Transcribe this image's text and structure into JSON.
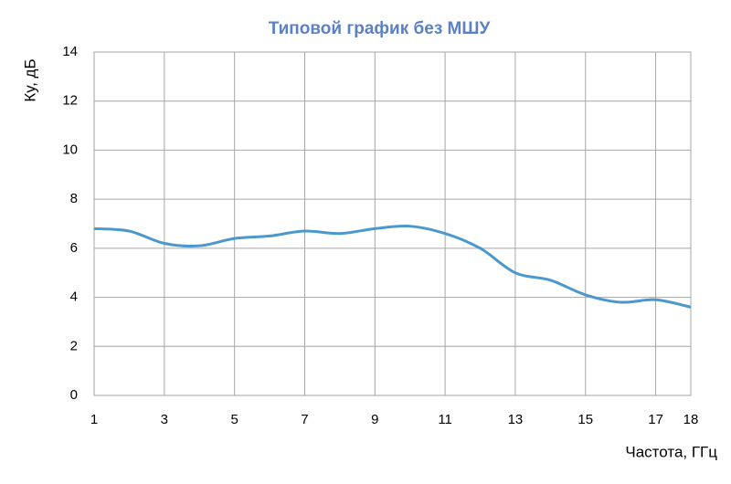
{
  "chart_data": {
    "type": "line",
    "title": "Типовой график без МШУ",
    "x_label": "Частота, ГГц",
    "y_label": "Ку, дБ",
    "x": [
      1,
      2,
      3,
      4,
      5,
      6,
      7,
      8,
      9,
      10,
      11,
      12,
      13,
      14,
      15,
      16,
      17,
      18
    ],
    "series": [
      {
        "name": "Ку",
        "color": "#4a98cd",
        "values": [
          6.8,
          6.7,
          6.2,
          6.1,
          6.4,
          6.5,
          6.7,
          6.6,
          6.8,
          6.9,
          6.6,
          6.0,
          5.0,
          4.7,
          4.1,
          3.8,
          3.9,
          3.6
        ]
      }
    ],
    "xlim": [
      1,
      18
    ],
    "xticks": [
      1,
      3,
      5,
      7,
      9,
      11,
      13,
      15,
      17,
      18
    ],
    "ylim": [
      0,
      14
    ],
    "yticks": [
      0,
      2,
      4,
      6,
      8,
      10,
      12,
      14
    ],
    "grid": true,
    "title_color": "#5b80c5"
  }
}
